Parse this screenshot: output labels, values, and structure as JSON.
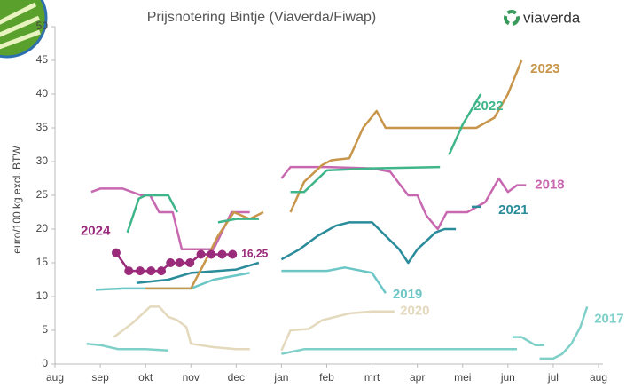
{
  "chart_data": {
    "type": "line",
    "title": "Prijsnotering Bintje (Viaverda/Fiwap)",
    "logo": "viaverda",
    "y_label": "euro/100 kg excl. BTW",
    "xlim": [
      0,
      12
    ],
    "xticks": [
      {
        "value": 0,
        "label": "aug"
      },
      {
        "value": 1,
        "label": "sep"
      },
      {
        "value": 2,
        "label": "okt"
      },
      {
        "value": 3,
        "label": "nov"
      },
      {
        "value": 4,
        "label": "dec"
      },
      {
        "value": 5,
        "label": "jan"
      },
      {
        "value": 6,
        "label": "feb"
      },
      {
        "value": 7,
        "label": "mrt"
      },
      {
        "value": 8,
        "label": "apr"
      },
      {
        "value": 9,
        "label": "mei"
      },
      {
        "value": 10,
        "label": "jun"
      },
      {
        "value": 11,
        "label": "jul"
      },
      {
        "value": 12,
        "label": "aug"
      }
    ],
    "ylim": [
      0,
      50
    ],
    "yticks": [
      0,
      5,
      10,
      15,
      20,
      25,
      30,
      35,
      40,
      45,
      50
    ],
    "grid": false,
    "series": [
      {
        "name": "2020",
        "color": "#e4d9bd",
        "x": [
          1.3,
          1.7,
          2.1,
          2.3,
          2.5,
          2.7,
          2.9,
          3.0,
          3.5,
          4.0,
          4.3,
          null,
          5.0,
          5.2,
          5.6,
          5.9,
          6.2,
          6.5,
          7.0,
          7.5
        ],
        "values": [
          4,
          6,
          8.5,
          8.5,
          7,
          6.5,
          5.5,
          3,
          2.5,
          2.2,
          2.2,
          null,
          2,
          5,
          5.2,
          6.5,
          7,
          7.5,
          7.8,
          7.8
        ]
      },
      {
        "name": "2017",
        "color": "#7fd0c8",
        "x": [
          0.7,
          1.0,
          1.4,
          2.0,
          2.5,
          null,
          5.0,
          5.5,
          10.0,
          10.2,
          null,
          10.1,
          10.3,
          10.6,
          10.8,
          null,
          10.7,
          11.0,
          11.2,
          11.4,
          11.6,
          11.75
        ],
        "values": [
          3,
          2.8,
          2.2,
          2.2,
          2.0,
          null,
          1.5,
          2.2,
          2.2,
          2.2,
          null,
          4,
          4,
          2.8,
          2.8,
          null,
          0.8,
          0.8,
          1.5,
          3,
          5.5,
          8.5
        ]
      },
      {
        "name": "2019",
        "color": "#6cc6c6",
        "x": [
          0.9,
          1.5,
          3.0,
          3.5,
          4.3,
          null,
          5.0,
          6.0,
          6.4,
          7.0,
          7.3
        ],
        "values": [
          11,
          11.2,
          11.2,
          12.5,
          13.5,
          null,
          13.8,
          13.8,
          14.3,
          13.5,
          10.5
        ]
      },
      {
        "name": "2018",
        "color": "#c868b0",
        "x": [
          0.8,
          1.0,
          1.5,
          1.9,
          2.1,
          2.3,
          2.6,
          2.8,
          3.5,
          3.9,
          4.3,
          null,
          5.0,
          5.2,
          6.0,
          7.0,
          7.4,
          7.8,
          8.0,
          8.2,
          8.45,
          8.65,
          9.1,
          9.5,
          9.8,
          10.0,
          10.2,
          10.4
        ],
        "values": [
          25.5,
          26,
          26,
          25,
          25,
          22.5,
          22.5,
          17,
          17,
          22.5,
          22.5,
          null,
          27.5,
          29.2,
          29.2,
          29,
          28.5,
          25,
          25,
          22,
          20,
          22.5,
          22.5,
          24,
          27.5,
          25.5,
          26.5,
          26.5
        ]
      },
      {
        "name": "2021",
        "color": "#2a8c9a",
        "x": [
          1.8,
          2.5,
          3.0,
          4.0,
          4.5,
          null,
          5.0,
          5.4,
          5.8,
          6.2,
          6.5,
          7.0,
          7.3,
          7.6,
          7.8,
          8.0,
          8.4,
          8.6,
          8.85,
          null,
          9.2,
          9.4
        ],
        "values": [
          12,
          12.5,
          13.5,
          14,
          15,
          null,
          15.5,
          17,
          19,
          20.5,
          21,
          21,
          19,
          17,
          15,
          17,
          19.5,
          20,
          20,
          null,
          23.3,
          23.3
        ]
      },
      {
        "name": "2023",
        "color": "#c8964a",
        "x": [
          2.0,
          3.0,
          3.3,
          3.6,
          3.95,
          4.3,
          4.6,
          null,
          5.2,
          5.5,
          5.9,
          6.1,
          6.5,
          6.8,
          7.1,
          7.3,
          8.0,
          9.3,
          9.7,
          10.0,
          10.3
        ],
        "values": [
          11.2,
          11.2,
          15,
          19,
          22.5,
          21.5,
          22.5,
          null,
          22.5,
          27,
          29.5,
          30.2,
          30.5,
          35,
          37.5,
          35,
          35,
          35,
          36.5,
          40,
          45
        ]
      },
      {
        "name": "2022",
        "color": "#3fb58a",
        "x": [
          1.6,
          1.85,
          2.0,
          2.5,
          2.7,
          null,
          3.6,
          4.0,
          4.5,
          null,
          5.2,
          5.5,
          6.0,
          7.0,
          8.5,
          null,
          8.7,
          9.0,
          9.4
        ],
        "values": [
          19.5,
          24.5,
          25,
          25,
          22.5,
          null,
          21,
          21.5,
          21.5,
          null,
          25.5,
          25.5,
          28.7,
          29,
          29.2,
          null,
          31,
          35.5,
          40
        ]
      },
      {
        "name": "2024",
        "color": "#9a2a7a",
        "markers": true,
        "x": [
          1.35,
          1.63,
          1.88,
          2.12,
          2.35,
          2.55,
          2.75,
          2.98,
          3.22,
          3.45,
          3.69,
          3.92
        ],
        "values": [
          16.5,
          13.8,
          13.8,
          13.8,
          13.8,
          15,
          15,
          15,
          16.25,
          16.25,
          16.25,
          16.25
        ],
        "value_labels": [
          null,
          null,
          null,
          null,
          null,
          null,
          null,
          null,
          null,
          null,
          null,
          "16,25"
        ]
      }
    ]
  }
}
